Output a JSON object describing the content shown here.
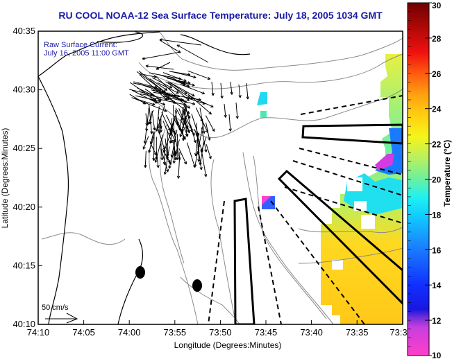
{
  "title": "RU COOL  NOAA-12  Sea Surface Temperature:  July 18, 2005 1034 GMT",
  "legend": {
    "line1": "Raw Surface Current:",
    "line2": "July 16, 2005 11:00 GMT",
    "scale_label": "50 cm/s"
  },
  "x_axis": {
    "title": "Longitude (Degrees:Minutes)",
    "ticks": [
      "74:10",
      "74:05",
      "74:00",
      "73:55",
      "73:50",
      "73:45",
      "73:40",
      "73:35",
      "73:3"
    ]
  },
  "y_axis": {
    "title": "Latitude (Degrees:Minutes)",
    "ticks": [
      "40:10",
      "40:15",
      "40:20",
      "40:25",
      "40:30",
      "40:35"
    ]
  },
  "colorbar": {
    "title": "Temperature (°C)",
    "ticks": [
      "10",
      "12",
      "14",
      "16",
      "18",
      "20",
      "22",
      "24",
      "26",
      "28",
      "30"
    ],
    "range": [
      10,
      30
    ]
  },
  "colors": {
    "title": "#1a1aa6",
    "coast": "#000000",
    "bathy": "#8a8a8a"
  }
}
